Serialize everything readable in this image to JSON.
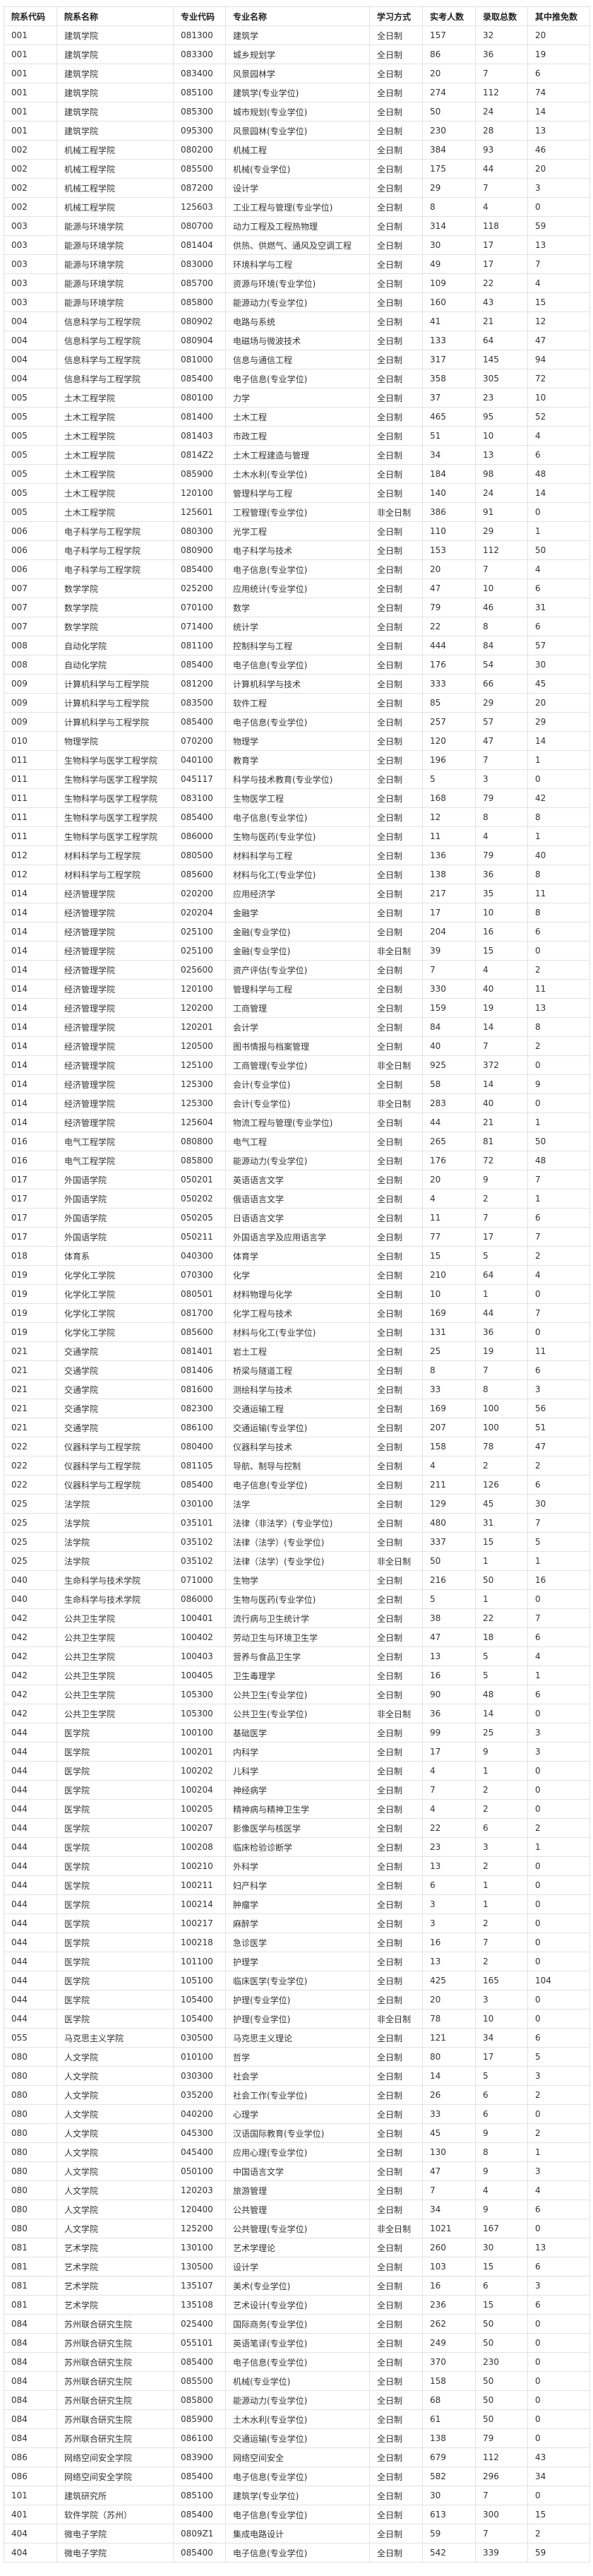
{
  "table": {
    "headers": [
      "院系代码",
      "院系名称",
      "专业代码",
      "专业名称",
      "学习方式",
      "实考人数",
      "录取总数",
      "其中推免数"
    ],
    "rows": [
      [
        "001",
        "建筑学院",
        "081300",
        "建筑学",
        "全日制",
        "157",
        "32",
        "20"
      ],
      [
        "001",
        "建筑学院",
        "083300",
        "城乡规划学",
        "全日制",
        "86",
        "36",
        "19"
      ],
      [
        "001",
        "建筑学院",
        "083400",
        "风景园林学",
        "全日制",
        "20",
        "7",
        "6"
      ],
      [
        "001",
        "建筑学院",
        "085100",
        "建筑学(专业学位)",
        "全日制",
        "274",
        "112",
        "74"
      ],
      [
        "001",
        "建筑学院",
        "085300",
        "城市规划(专业学位)",
        "全日制",
        "50",
        "24",
        "14"
      ],
      [
        "001",
        "建筑学院",
        "095300",
        "风景园林(专业学位)",
        "全日制",
        "230",
        "28",
        "13"
      ],
      [
        "002",
        "机械工程学院",
        "080200",
        "机械工程",
        "全日制",
        "384",
        "93",
        "46"
      ],
      [
        "002",
        "机械工程学院",
        "085500",
        "机械(专业学位)",
        "全日制",
        "175",
        "44",
        "20"
      ],
      [
        "002",
        "机械工程学院",
        "087200",
        "设计学",
        "全日制",
        "29",
        "7",
        "3"
      ],
      [
        "002",
        "机械工程学院",
        "125603",
        "工业工程与管理(专业学位)",
        "全日制",
        "8",
        "4",
        "0"
      ],
      [
        "003",
        "能源与环境学院",
        "080700",
        "动力工程及工程热物理",
        "全日制",
        "314",
        "118",
        "59"
      ],
      [
        "003",
        "能源与环境学院",
        "081404",
        "供热、供燃气、通风及空调工程",
        "全日制",
        "30",
        "17",
        "13"
      ],
      [
        "003",
        "能源与环境学院",
        "083000",
        "环境科学与工程",
        "全日制",
        "49",
        "17",
        "7"
      ],
      [
        "003",
        "能源与环境学院",
        "085700",
        "资源与环境(专业学位)",
        "全日制",
        "109",
        "22",
        "4"
      ],
      [
        "003",
        "能源与环境学院",
        "085800",
        "能源动力(专业学位)",
        "全日制",
        "160",
        "43",
        "15"
      ],
      [
        "004",
        "信息科学与工程学院",
        "080902",
        "电路与系统",
        "全日制",
        "41",
        "21",
        "12"
      ],
      [
        "004",
        "信息科学与工程学院",
        "080904",
        "电磁场与微波技术",
        "全日制",
        "133",
        "64",
        "47"
      ],
      [
        "004",
        "信息科学与工程学院",
        "081000",
        "信息与通信工程",
        "全日制",
        "317",
        "145",
        "94"
      ],
      [
        "004",
        "信息科学与工程学院",
        "085400",
        "电子信息(专业学位)",
        "全日制",
        "358",
        "305",
        "72"
      ],
      [
        "005",
        "土木工程学院",
        "080100",
        "力学",
        "全日制",
        "37",
        "23",
        "10"
      ],
      [
        "005",
        "土木工程学院",
        "081400",
        "土木工程",
        "全日制",
        "465",
        "95",
        "52"
      ],
      [
        "005",
        "土木工程学院",
        "081403",
        "市政工程",
        "全日制",
        "51",
        "10",
        "4"
      ],
      [
        "005",
        "土木工程学院",
        "0814Z2",
        "土木工程建造与管理",
        "全日制",
        "34",
        "13",
        "6"
      ],
      [
        "005",
        "土木工程学院",
        "085900",
        "土木水利(专业学位)",
        "全日制",
        "184",
        "98",
        "48"
      ],
      [
        "005",
        "土木工程学院",
        "120100",
        "管理科学与工程",
        "全日制",
        "140",
        "24",
        "14"
      ],
      [
        "005",
        "土木工程学院",
        "125601",
        "工程管理(专业学位)",
        "非全日制",
        "386",
        "91",
        "0"
      ],
      [
        "006",
        "电子科学与工程学院",
        "080300",
        "光学工程",
        "全日制",
        "110",
        "29",
        "1"
      ],
      [
        "006",
        "电子科学与工程学院",
        "080900",
        "电子科学与技术",
        "全日制",
        "153",
        "112",
        "50"
      ],
      [
        "006",
        "电子科学与工程学院",
        "085400",
        "电子信息(专业学位)",
        "全日制",
        "20",
        "7",
        "4"
      ],
      [
        "007",
        "数学学院",
        "025200",
        "应用统计(专业学位)",
        "全日制",
        "47",
        "10",
        "6"
      ],
      [
        "007",
        "数学学院",
        "070100",
        "数学",
        "全日制",
        "79",
        "46",
        "31"
      ],
      [
        "007",
        "数学学院",
        "071400",
        "统计学",
        "全日制",
        "22",
        "8",
        "6"
      ],
      [
        "008",
        "自动化学院",
        "081100",
        "控制科学与工程",
        "全日制",
        "444",
        "84",
        "57"
      ],
      [
        "008",
        "自动化学院",
        "085400",
        "电子信息(专业学位)",
        "全日制",
        "176",
        "54",
        "30"
      ],
      [
        "009",
        "计算机科学与工程学院",
        "081200",
        "计算机科学与技术",
        "全日制",
        "333",
        "66",
        "45"
      ],
      [
        "009",
        "计算机科学与工程学院",
        "083500",
        "软件工程",
        "全日制",
        "85",
        "29",
        "20"
      ],
      [
        "009",
        "计算机科学与工程学院",
        "085400",
        "电子信息(专业学位)",
        "全日制",
        "257",
        "57",
        "29"
      ],
      [
        "010",
        "物理学院",
        "070200",
        "物理学",
        "全日制",
        "120",
        "47",
        "14"
      ],
      [
        "011",
        "生物科学与医学工程学院",
        "040100",
        "教育学",
        "全日制",
        "196",
        "7",
        "1"
      ],
      [
        "011",
        "生物科学与医学工程学院",
        "045117",
        "科学与技术教育(专业学位)",
        "全日制",
        "5",
        "3",
        "0"
      ],
      [
        "011",
        "生物科学与医学工程学院",
        "083100",
        "生物医学工程",
        "全日制",
        "168",
        "79",
        "42"
      ],
      [
        "011",
        "生物科学与医学工程学院",
        "085400",
        "电子信息(专业学位)",
        "全日制",
        "12",
        "8",
        "8"
      ],
      [
        "011",
        "生物科学与医学工程学院",
        "086000",
        "生物与医药(专业学位)",
        "全日制",
        "11",
        "4",
        "1"
      ],
      [
        "012",
        "材料科学与工程学院",
        "080500",
        "材料科学与工程",
        "全日制",
        "136",
        "79",
        "40"
      ],
      [
        "012",
        "材料科学与工程学院",
        "085600",
        "材料与化工(专业学位)",
        "全日制",
        "138",
        "36",
        "8"
      ],
      [
        "014",
        "经济管理学院",
        "020200",
        "应用经济学",
        "全日制",
        "217",
        "35",
        "11"
      ],
      [
        "014",
        "经济管理学院",
        "020204",
        "金融学",
        "全日制",
        "17",
        "10",
        "8"
      ],
      [
        "014",
        "经济管理学院",
        "025100",
        "金融(专业学位)",
        "全日制",
        "204",
        "16",
        "6"
      ],
      [
        "014",
        "经济管理学院",
        "025100",
        "金融(专业学位)",
        "非全日制",
        "39",
        "15",
        "0"
      ],
      [
        "014",
        "经济管理学院",
        "025600",
        "资产评估(专业学位)",
        "全日制",
        "7",
        "4",
        "2"
      ],
      [
        "014",
        "经济管理学院",
        "120100",
        "管理科学与工程",
        "全日制",
        "330",
        "40",
        "11"
      ],
      [
        "014",
        "经济管理学院",
        "120200",
        "工商管理",
        "全日制",
        "159",
        "19",
        "13"
      ],
      [
        "014",
        "经济管理学院",
        "120201",
        "会计学",
        "全日制",
        "84",
        "14",
        "8"
      ],
      [
        "014",
        "经济管理学院",
        "120500",
        "图书情报与档案管理",
        "全日制",
        "40",
        "7",
        "2"
      ],
      [
        "014",
        "经济管理学院",
        "125100",
        "工商管理(专业学位)",
        "非全日制",
        "925",
        "372",
        "0"
      ],
      [
        "014",
        "经济管理学院",
        "125300",
        "会计(专业学位)",
        "全日制",
        "58",
        "14",
        "9"
      ],
      [
        "014",
        "经济管理学院",
        "125300",
        "会计(专业学位)",
        "非全日制",
        "283",
        "40",
        "0"
      ],
      [
        "014",
        "经济管理学院",
        "125604",
        "物流工程与管理(专业学位)",
        "全日制",
        "44",
        "21",
        "1"
      ],
      [
        "016",
        "电气工程学院",
        "080800",
        "电气工程",
        "全日制",
        "265",
        "81",
        "50"
      ],
      [
        "016",
        "电气工程学院",
        "085800",
        "能源动力(专业学位)",
        "全日制",
        "176",
        "72",
        "48"
      ],
      [
        "017",
        "外国语学院",
        "050201",
        "英语语言文学",
        "全日制",
        "20",
        "9",
        "7"
      ],
      [
        "017",
        "外国语学院",
        "050202",
        "俄语语言文学",
        "全日制",
        "4",
        "2",
        "1"
      ],
      [
        "017",
        "外国语学院",
        "050205",
        "日语语言文学",
        "全日制",
        "11",
        "7",
        "6"
      ],
      [
        "017",
        "外国语学院",
        "050211",
        "外国语言学及应用语言学",
        "全日制",
        "77",
        "17",
        "7"
      ],
      [
        "018",
        "体育系",
        "040300",
        "体育学",
        "全日制",
        "15",
        "5",
        "2"
      ],
      [
        "019",
        "化学化工学院",
        "070300",
        "化学",
        "全日制",
        "210",
        "64",
        "4"
      ],
      [
        "019",
        "化学化工学院",
        "080501",
        "材料物理与化学",
        "全日制",
        "10",
        "1",
        "0"
      ],
      [
        "019",
        "化学化工学院",
        "081700",
        "化学工程与技术",
        "全日制",
        "169",
        "44",
        "7"
      ],
      [
        "019",
        "化学化工学院",
        "085600",
        "材料与化工(专业学位)",
        "全日制",
        "131",
        "36",
        "0"
      ],
      [
        "021",
        "交通学院",
        "081401",
        "岩土工程",
        "全日制",
        "25",
        "19",
        "11"
      ],
      [
        "021",
        "交通学院",
        "081406",
        "桥梁与隧道工程",
        "全日制",
        "8",
        "7",
        "6"
      ],
      [
        "021",
        "交通学院",
        "081600",
        " 测绘科学与技术",
        "全日制",
        "33",
        "8",
        "3"
      ],
      [
        "021",
        "交通学院",
        "082300",
        "交通运输工程",
        "全日制",
        "169",
        "100",
        "56"
      ],
      [
        "021",
        "交通学院",
        "086100",
        "交通运输(专业学位)",
        "全日制",
        "207",
        "100",
        "51"
      ],
      [
        "022",
        "仪器科学与工程学院",
        "080400",
        "仪器科学与技术",
        "全日制",
        "158",
        "78",
        "47"
      ],
      [
        "022",
        "仪器科学与工程学院",
        "081105",
        "导航、制导与控制",
        "全日制",
        "4",
        "2",
        "2"
      ],
      [
        "022",
        "仪器科学与工程学院",
        "085400",
        "电子信息(专业学位)",
        "全日制",
        "211",
        "126",
        "6"
      ],
      [
        "025",
        "法学院",
        "030100",
        "法学",
        "全日制",
        "129",
        "45",
        "30"
      ],
      [
        "025",
        "法学院",
        "035101",
        "法律（非法学）(专业学位)",
        "全日制",
        "480",
        "31",
        "7"
      ],
      [
        "025",
        "法学院",
        "035102",
        "法律（法学）(专业学位)",
        "全日制",
        "337",
        "15",
        "5"
      ],
      [
        "025",
        "法学院",
        "035102",
        "法律（法学）(专业学位)",
        "非全日制",
        "50",
        "1",
        "1"
      ],
      [
        "040",
        "生命科学与技术学院",
        "071000",
        "生物学",
        "全日制",
        "216",
        "50",
        "16"
      ],
      [
        "040",
        "生命科学与技术学院",
        "086000",
        "生物与医药(专业学位)",
        "全日制",
        "5",
        "1",
        "0"
      ],
      [
        "042",
        "公共卫生学院",
        "100401",
        "流行病与卫生统计学",
        "全日制",
        "38",
        "22",
        "7"
      ],
      [
        "042",
        "公共卫生学院",
        "100402",
        "劳动卫生与环境卫生学",
        "全日制",
        "47",
        "18",
        "6"
      ],
      [
        "042",
        "公共卫生学院",
        "100403",
        "营养与食品卫生学",
        "全日制",
        "13",
        "5",
        "4"
      ],
      [
        "042",
        "公共卫生学院",
        "100405",
        "卫生毒理学",
        "全日制",
        "16",
        "5",
        "1"
      ],
      [
        "042",
        "公共卫生学院",
        "105300",
        "公共卫生(专业学位)",
        "全日制",
        "90",
        "48",
        "6"
      ],
      [
        "042",
        "公共卫生学院",
        "105300",
        "公共卫生(专业学位)",
        "非全日制",
        "36",
        "14",
        "0"
      ],
      [
        "044",
        "医学院",
        "100100",
        "基础医学",
        "全日制",
        "99",
        "25",
        "3"
      ],
      [
        "044",
        "医学院",
        "100201",
        "内科学",
        "全日制",
        "17",
        "9",
        "3"
      ],
      [
        "044",
        "医学院",
        "100202",
        "儿科学",
        "全日制",
        "4",
        "1",
        "0"
      ],
      [
        "044",
        "医学院",
        "100204",
        "神经病学",
        "全日制",
        "7",
        "2",
        "0"
      ],
      [
        "044",
        "医学院",
        "100205",
        "精神病与精神卫生学",
        "全日制",
        "4",
        "2",
        "0"
      ],
      [
        "044",
        "医学院",
        "100207",
        "影像医学与核医学",
        "全日制",
        "22",
        "6",
        "2"
      ],
      [
        "044",
        "医学院",
        "100208",
        "临床检验诊断学",
        "全日制",
        "23",
        "3",
        "1"
      ],
      [
        "044",
        "医学院",
        "100210",
        "外科学",
        "全日制",
        "13",
        "2",
        "0"
      ],
      [
        "044",
        "医学院",
        "100211",
        "妇产科学",
        "全日制",
        "6",
        "1",
        "0"
      ],
      [
        "044",
        "医学院",
        "100214",
        "肿瘤学",
        "全日制",
        "3",
        "1",
        "0"
      ],
      [
        "044",
        "医学院",
        "100217",
        "麻醉学",
        "全日制",
        "3",
        "2",
        "0"
      ],
      [
        "044",
        "医学院",
        "100218",
        "急诊医学",
        "全日制",
        "16",
        "7",
        "0"
      ],
      [
        "044",
        "医学院",
        "101100",
        "护理学",
        "全日制",
        "13",
        "2",
        "0"
      ],
      [
        "044",
        "医学院",
        "105100",
        "临床医学(专业学位)",
        "全日制",
        "425",
        "165",
        "104"
      ],
      [
        "044",
        "医学院",
        "105400",
        "护理(专业学位)",
        "全日制",
        "20",
        "3",
        "0"
      ],
      [
        "044",
        "医学院",
        "105400",
        "护理(专业学位)",
        "非全日制",
        "78",
        "10",
        "0"
      ],
      [
        "055",
        "马克思主义学院",
        "030500",
        "马克思主义理论",
        "全日制",
        "121",
        "34",
        "6"
      ],
      [
        "080",
        "人文学院",
        "010100",
        "哲学",
        "全日制",
        "80",
        "17",
        "5"
      ],
      [
        "080",
        "人文学院",
        "030300",
        "社会学",
        "全日制",
        "14",
        "5",
        "3"
      ],
      [
        "080",
        "人文学院",
        "035200",
        "社会工作(专业学位)",
        "全日制",
        "26",
        "6",
        "2"
      ],
      [
        "080",
        "人文学院",
        "040200",
        "心理学",
        "全日制",
        "33",
        "6",
        "0"
      ],
      [
        "080",
        "人文学院",
        "045300",
        "汉语国际教育(专业学位)",
        "全日制",
        "45",
        "9",
        "2"
      ],
      [
        "080",
        "人文学院",
        "045400",
        "应用心理(专业学位)",
        "全日制",
        "130",
        "8",
        "1"
      ],
      [
        "080",
        "人文学院",
        "050100",
        "中国语言文学",
        "全日制",
        "47",
        "9",
        "3"
      ],
      [
        "080",
        "人文学院",
        "120203",
        "旅游管理",
        "全日制",
        "7",
        "4",
        "4"
      ],
      [
        "080",
        "人文学院",
        "120400",
        "公共管理",
        "全日制",
        "34",
        "9",
        "6"
      ],
      [
        "080",
        "人文学院",
        "125200",
        "公共管理(专业学位)",
        "非全日制",
        "1021",
        "167",
        "0"
      ],
      [
        "081",
        "艺术学院",
        "130100",
        "艺术学理论",
        "全日制",
        "260",
        "30",
        "13"
      ],
      [
        "081",
        "艺术学院",
        "130500",
        "设计学",
        "全日制",
        "103",
        "15",
        "6"
      ],
      [
        "081",
        "艺术学院",
        "135107",
        "美术(专业学位)",
        "全日制",
        "16",
        "6",
        "3"
      ],
      [
        "081",
        "艺术学院",
        "135108",
        "艺术设计(专业学位)",
        "全日制",
        "236",
        "15",
        "6"
      ],
      [
        "084",
        "苏州联合研究生院",
        "025400",
        "国际商务(专业学位)",
        "全日制",
        "262",
        "50",
        "0"
      ],
      [
        "084",
        "苏州联合研究生院",
        "055101",
        "英语笔译(专业学位)",
        "全日制",
        "249",
        "50",
        "0"
      ],
      [
        "084",
        "苏州联合研究生院",
        "085400",
        "电子信息(专业学位)",
        "全日制",
        "370",
        "230",
        "0"
      ],
      [
        "084",
        "苏州联合研究生院",
        "085500",
        "机械(专业学位)",
        "全日制",
        "158",
        "50",
        "0"
      ],
      [
        "084",
        "苏州联合研究生院",
        "085800",
        "能源动力(专业学位)",
        "全日制",
        "68",
        "50",
        "0"
      ],
      [
        "084",
        "苏州联合研究生院",
        "085900",
        "土木水利(专业学位)",
        "全日制",
        "61",
        "50",
        "0"
      ],
      [
        "084",
        "苏州联合研究生院",
        "086100",
        "交通运输(专业学位)",
        "全日制",
        "138",
        "79",
        "0"
      ],
      [
        "086",
        "网络空间安全学院",
        "083900",
        "网络空间安全",
        "全日制",
        "679",
        "112",
        "43"
      ],
      [
        "086",
        "网络空间安全学院",
        "085400",
        "电子信息(专业学位)",
        "全日制",
        "582",
        "296",
        "34"
      ],
      [
        "101",
        "建筑研究所",
        "085100",
        "建筑学(专业学位)",
        "全日制",
        "30",
        "7",
        "0"
      ],
      [
        "401",
        "软件学院（苏州）",
        "085400",
        "电子信息(专业学位)",
        "全日制",
        "613",
        "300",
        "15"
      ],
      [
        "404",
        "微电子学院",
        "0809Z1",
        "集成电路设计",
        "全日制",
        "59",
        "7",
        "2"
      ],
      [
        "404",
        "微电子学院",
        "085400",
        "电子信息(专业学位)",
        "全日制",
        "542",
        "339",
        "59"
      ]
    ]
  }
}
